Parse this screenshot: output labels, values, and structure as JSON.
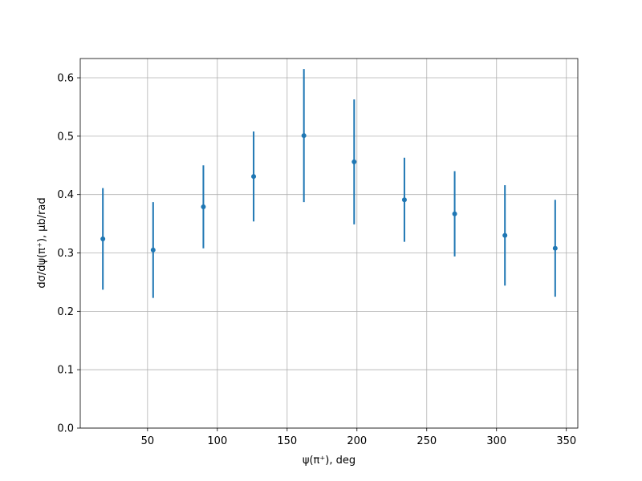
{
  "chart_data": {
    "type": "errorbar",
    "x_label": "ψ(π⁺), deg",
    "y_label": "dσ/dψ(π⁺), μb/rad",
    "x": [
      18,
      54,
      90,
      126,
      162,
      198,
      234,
      270,
      306,
      342
    ],
    "values": [
      0.324,
      0.305,
      0.379,
      0.431,
      0.501,
      0.456,
      0.391,
      0.367,
      0.33,
      0.308
    ],
    "errors": [
      0.087,
      0.082,
      0.071,
      0.077,
      0.114,
      0.107,
      0.072,
      0.073,
      0.086,
      0.083
    ],
    "color": "#1f77b4",
    "xlim": [
      1.8,
      358.2
    ],
    "xticks": [
      50,
      100,
      150,
      200,
      250,
      300,
      350
    ],
    "ylim": [
      0,
      0.633
    ],
    "yticks": [
      {
        "value": 0,
        "label": "0.0"
      },
      0.1,
      0.2,
      0.3,
      0.4,
      0.5,
      0.6
    ],
    "grid": true
  }
}
